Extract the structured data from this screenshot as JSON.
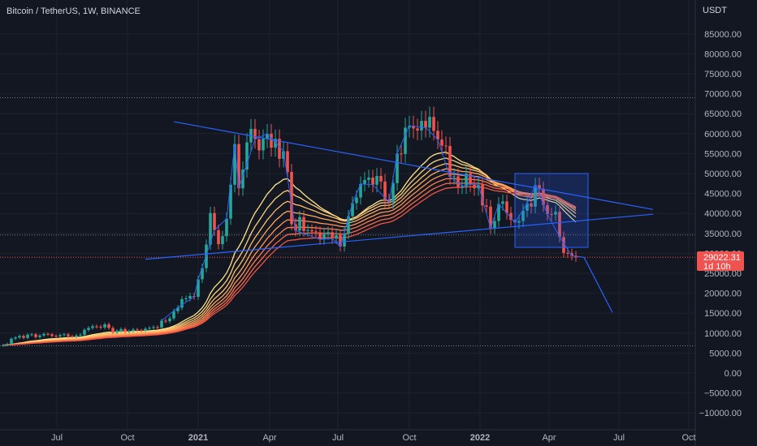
{
  "header": {
    "symbol_line": "Bitcoin / TetherUS, 1W, BINANCE"
  },
  "price_axis": {
    "unit": "USDT"
  },
  "price_badge": {
    "price": "29022.31",
    "countdown": "1d 10h"
  },
  "colors": {
    "background": "#131722",
    "up": "#26a69a",
    "down": "#ef5350",
    "drawing": "#2962ff",
    "rainbow": [
      "#ffe58a",
      "#ffd27a",
      "#ffbf6c",
      "#ffaa60",
      "#ff9456",
      "#ff7d4e",
      "#f96848",
      "#f05444"
    ]
  },
  "chart_data": {
    "type": "candlestick",
    "x_tick_labels": [
      "Jul",
      "Oct",
      "2021",
      "Apr",
      "Jul",
      "Oct",
      "2022",
      "Apr",
      "Jul",
      "Oct"
    ],
    "y_tick_labels": [
      "85000.00",
      "80000.00",
      "75000.00",
      "70000.00",
      "65000.00",
      "60000.00",
      "55000.00",
      "50000.00",
      "45000.00",
      "40000.00",
      "35000.00",
      "30000.00",
      "25000.00",
      "20000.00",
      "15000.00",
      "10000.00",
      "5000.00",
      "0.00",
      "−5000.00",
      "−10000.00"
    ],
    "ylim": [
      -12000,
      90000
    ],
    "grid": true,
    "last_price": 29022.31,
    "horizontal_levels": [
      69000,
      34600,
      6800
    ],
    "candles_close": [
      7000,
      7300,
      8600,
      8900,
      9300,
      8800,
      9600,
      9700,
      9000,
      9400,
      9800,
      9700,
      9300,
      9200,
      9500,
      9700,
      9200,
      9100,
      9400,
      9600,
      10800,
      11300,
      11700,
      11600,
      11400,
      12200,
      11300,
      10100,
      10600,
      11000,
      10300,
      10500,
      10900,
      10700,
      10600,
      11100,
      11300,
      11500,
      11400,
      13100,
      13000,
      13700,
      15500,
      16400,
      18500,
      18700,
      19300,
      19100,
      23500,
      26300,
      32200,
      40100,
      35800,
      32300,
      34300,
      38700,
      47200,
      57400,
      46300,
      51000,
      57800,
      61200,
      58600,
      55800,
      58700,
      60000,
      56500,
      58700,
      53700,
      55600,
      50400,
      37300,
      35700,
      39100,
      35600,
      35800,
      35500,
      35300,
      33500,
      34800,
      35300,
      33700,
      34600,
      31700,
      35000,
      39300,
      42600,
      44000,
      47400,
      48400,
      49000,
      47200,
      49400,
      48000,
      43200,
      42800,
      47600,
      55000,
      54900,
      61500,
      62000,
      61300,
      60800,
      63200,
      61500,
      64200,
      60700,
      58500,
      57000,
      56900,
      49200,
      49300,
      46700,
      46800,
      50000,
      47300,
      46300,
      47200,
      42000,
      41700,
      36300,
      38100,
      42400,
      43000,
      40100,
      38400,
      37700,
      38100,
      40700,
      42500,
      41700,
      47100,
      46100,
      42100,
      39800,
      39700,
      40400,
      34100,
      30100,
      30000,
      29400,
      29022
    ],
    "rainbow_ema_periods": [
      20,
      25,
      30,
      35,
      40,
      45,
      50,
      55
    ],
    "trendlines": [
      {
        "name": "upper-descending-trendline",
        "from": {
          "week": 42,
          "price": 63000
        },
        "to": {
          "week": 160,
          "price": 41000
        }
      },
      {
        "name": "lower-ascending-trendline",
        "from": {
          "week": 35,
          "price": 28500
        },
        "to": {
          "week": 160,
          "price": 39800
        }
      },
      {
        "name": "projection-line",
        "from": {
          "week": 143,
          "price": 29000
        },
        "to": {
          "week": 150,
          "price": 15200
        }
      }
    ],
    "rectangle": {
      "weeks": [
        126,
        144
      ],
      "prices": [
        31500,
        50000
      ]
    },
    "zigzag_weeks": [
      39,
      43,
      47,
      48,
      52,
      55,
      57,
      58,
      62,
      65,
      69,
      72,
      78,
      81,
      83,
      86,
      88,
      91,
      95,
      97,
      100,
      104,
      107,
      110,
      113,
      115,
      117,
      120,
      122,
      126,
      129,
      131,
      134,
      137,
      140,
      143
    ]
  }
}
